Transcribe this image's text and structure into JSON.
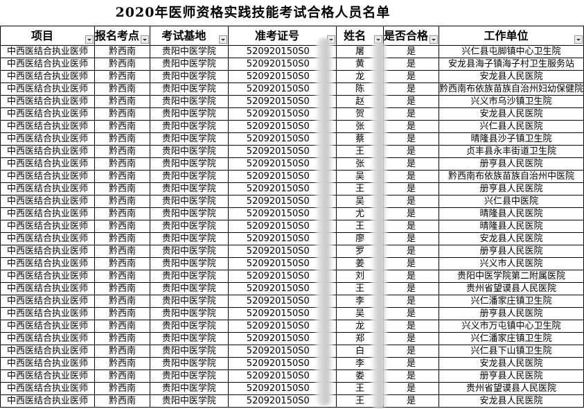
{
  "title": "2020年医师资格实践技能考试合格人员名单",
  "headers": [
    "项目",
    "报名考点",
    "考试基地",
    "准考证号",
    "姓名",
    "是否合格",
    "工作单位"
  ],
  "common": {
    "project": "中西医结合执业医师",
    "site": "黔西南",
    "base": "贵阳中医学院",
    "id_prefix": "520920150S0",
    "pass": "是"
  },
  "rows": [
    [
      "屠",
      "兴仁县屯脚镇中心卫生院"
    ],
    [
      "黄",
      "安龙县海子镇海子村卫生服务站"
    ],
    [
      "龙",
      "安龙县人民医院"
    ],
    [
      "陈",
      "黔西南布依族苗族自治州妇幼保健院"
    ],
    [
      "赵",
      "兴义市乌沙镇卫生院"
    ],
    [
      "贺",
      "安龙县人民医院"
    ],
    [
      "张",
      "兴仁县人民医院"
    ],
    [
      "蔡",
      "晴隆县沙子镇卫生院"
    ],
    [
      "王",
      "贞丰县永丰街道卫生院"
    ],
    [
      "张",
      "册亨县人民医院"
    ],
    [
      "吴",
      "黔西南布依族苗族自治州中医院"
    ],
    [
      "王",
      "册亨县人民医院"
    ],
    [
      "吴",
      "兴仁县中医院"
    ],
    [
      "尤",
      "晴隆县人民医院"
    ],
    [
      "王",
      "晴隆县人民医院"
    ],
    [
      "廖",
      "安龙县人民医院"
    ],
    [
      "罗",
      "册亨县人民医院"
    ],
    [
      "姜",
      "兴义市人民医院"
    ],
    [
      "刘",
      "贵阳中医学院第二附属医院"
    ],
    [
      "王",
      "贵州省望谟县人民医院"
    ],
    [
      "李",
      "兴仁潘家庄镇卫生院"
    ],
    [
      "吴",
      "册亨县人民医院"
    ],
    [
      "龙",
      "兴义市万屯镇中心卫生院"
    ],
    [
      "郑",
      "兴仁潘家庄镇卫生院"
    ],
    [
      "白",
      "兴仁县下山镇卫生院"
    ],
    [
      "李",
      "安龙县人民医院"
    ],
    [
      "娄",
      "册亨县人民医院"
    ],
    [
      "王",
      "贵州省望谟县人民医院"
    ],
    [
      "王",
      "安龙县人民医院"
    ]
  ]
}
